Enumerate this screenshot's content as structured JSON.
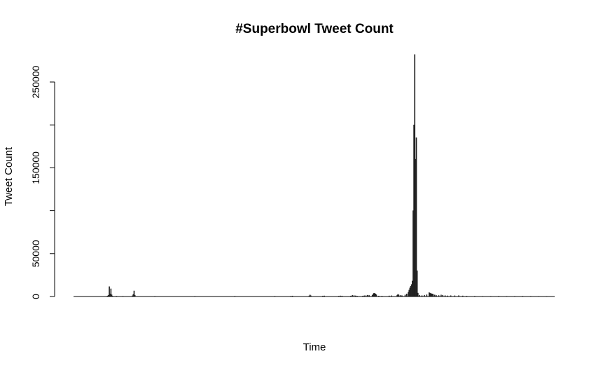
{
  "chart_data": {
    "type": "bar",
    "title": "#Superbowl Tweet Count",
    "xlabel": "Time",
    "ylabel": "Tweet Count",
    "ylim": [
      0,
      280000
    ],
    "yticks": [
      0,
      50000,
      100000,
      150000,
      200000,
      250000
    ],
    "ytick_labels": [
      "0",
      "50000",
      "",
      "150000",
      "",
      "250000"
    ],
    "grid": false,
    "legend": "none",
    "bar_color": "#333333",
    "x_index_range": [
      0,
      600
    ],
    "bars": [
      {
        "x": 40,
        "y": 300
      },
      {
        "x": 41,
        "y": 700
      },
      {
        "x": 42,
        "y": 1500
      },
      {
        "x": 43,
        "y": 11500
      },
      {
        "x": 44,
        "y": 3000
      },
      {
        "x": 45,
        "y": 9000
      },
      {
        "x": 46,
        "y": 2000
      },
      {
        "x": 47,
        "y": 500
      },
      {
        "x": 52,
        "y": 400
      },
      {
        "x": 60,
        "y": 300
      },
      {
        "x": 72,
        "y": 900
      },
      {
        "x": 73,
        "y": 2500
      },
      {
        "x": 74,
        "y": 6500
      },
      {
        "x": 75,
        "y": 1500
      },
      {
        "x": 100,
        "y": 300
      },
      {
        "x": 150,
        "y": 300
      },
      {
        "x": 200,
        "y": 350
      },
      {
        "x": 250,
        "y": 350
      },
      {
        "x": 270,
        "y": 400
      },
      {
        "x": 272,
        "y": 600
      },
      {
        "x": 293,
        "y": 700
      },
      {
        "x": 294,
        "y": 1800
      },
      {
        "x": 295,
        "y": 900
      },
      {
        "x": 310,
        "y": 600
      },
      {
        "x": 312,
        "y": 700
      },
      {
        "x": 330,
        "y": 500
      },
      {
        "x": 332,
        "y": 700
      },
      {
        "x": 334,
        "y": 600
      },
      {
        "x": 345,
        "y": 600
      },
      {
        "x": 347,
        "y": 1300
      },
      {
        "x": 349,
        "y": 1100
      },
      {
        "x": 351,
        "y": 800
      },
      {
        "x": 353,
        "y": 500
      },
      {
        "x": 360,
        "y": 600
      },
      {
        "x": 362,
        "y": 900
      },
      {
        "x": 364,
        "y": 1000
      },
      {
        "x": 366,
        "y": 1500
      },
      {
        "x": 368,
        "y": 1200
      },
      {
        "x": 372,
        "y": 1500
      },
      {
        "x": 373,
        "y": 3000
      },
      {
        "x": 374,
        "y": 3800
      },
      {
        "x": 375,
        "y": 3500
      },
      {
        "x": 376,
        "y": 3000
      },
      {
        "x": 377,
        "y": 2000
      },
      {
        "x": 380,
        "y": 600
      },
      {
        "x": 384,
        "y": 500
      },
      {
        "x": 393,
        "y": 700
      },
      {
        "x": 396,
        "y": 900
      },
      {
        "x": 403,
        "y": 1500
      },
      {
        "x": 404,
        "y": 2500
      },
      {
        "x": 405,
        "y": 1800
      },
      {
        "x": 407,
        "y": 1200
      },
      {
        "x": 409,
        "y": 1000
      },
      {
        "x": 413,
        "y": 1800
      },
      {
        "x": 415,
        "y": 3000
      },
      {
        "x": 417,
        "y": 5000
      },
      {
        "x": 418,
        "y": 7500
      },
      {
        "x": 419,
        "y": 10000
      },
      {
        "x": 420,
        "y": 12000
      },
      {
        "x": 421,
        "y": 14000
      },
      {
        "x": 422,
        "y": 18000
      },
      {
        "x": 423,
        "y": 100000
      },
      {
        "x": 424,
        "y": 200000
      },
      {
        "x": 425,
        "y": 282000
      },
      {
        "x": 426,
        "y": 160000
      },
      {
        "x": 427,
        "y": 185000
      },
      {
        "x": 428,
        "y": 30000
      },
      {
        "x": 429,
        "y": 4000
      },
      {
        "x": 431,
        "y": 1500
      },
      {
        "x": 434,
        "y": 1000
      },
      {
        "x": 437,
        "y": 1500
      },
      {
        "x": 440,
        "y": 2000
      },
      {
        "x": 443,
        "y": 4500
      },
      {
        "x": 444,
        "y": 4000
      },
      {
        "x": 445,
        "y": 3500
      },
      {
        "x": 446,
        "y": 3200
      },
      {
        "x": 447,
        "y": 3000
      },
      {
        "x": 448,
        "y": 2500
      },
      {
        "x": 450,
        "y": 1800
      },
      {
        "x": 452,
        "y": 1200
      },
      {
        "x": 455,
        "y": 1200
      },
      {
        "x": 458,
        "y": 1800
      },
      {
        "x": 460,
        "y": 1500
      },
      {
        "x": 463,
        "y": 1000
      },
      {
        "x": 466,
        "y": 800
      },
      {
        "x": 470,
        "y": 1000
      },
      {
        "x": 475,
        "y": 900
      },
      {
        "x": 480,
        "y": 1000
      },
      {
        "x": 485,
        "y": 700
      },
      {
        "x": 490,
        "y": 500
      },
      {
        "x": 500,
        "y": 400
      },
      {
        "x": 510,
        "y": 300
      },
      {
        "x": 520,
        "y": 300
      },
      {
        "x": 530,
        "y": 400
      },
      {
        "x": 540,
        "y": 300
      },
      {
        "x": 550,
        "y": 300
      },
      {
        "x": 560,
        "y": 400
      },
      {
        "x": 570,
        "y": 300
      },
      {
        "x": 580,
        "y": 250
      },
      {
        "x": 590,
        "y": 200
      }
    ]
  }
}
